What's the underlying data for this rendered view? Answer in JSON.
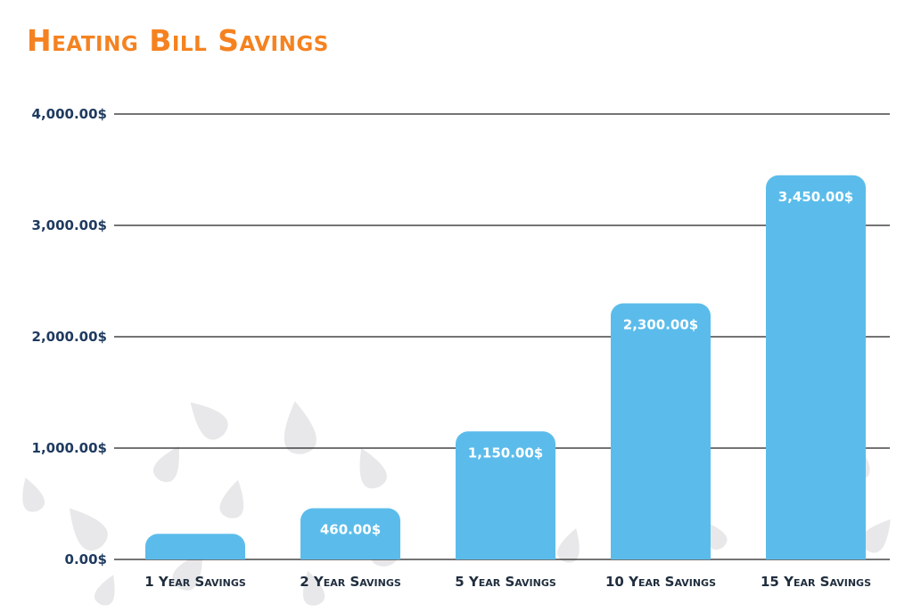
{
  "chart_data": {
    "type": "bar",
    "title": "Heating Bill Savings",
    "categories": [
      "1 Year Savings",
      "2 Year Savings",
      "5 Year Savings",
      "10 Year Savings",
      "15 Year Savings"
    ],
    "values": [
      230,
      460,
      1150,
      2300,
      3450
    ],
    "data_labels": [
      "",
      "460.00$",
      "1,150.00$",
      "2,300.00$",
      "3,450.00$"
    ],
    "y_ticks": [
      0,
      1000,
      2000,
      3000,
      4000
    ],
    "y_tick_labels": [
      "0.00$",
      "1,000.00$",
      "2,000.00$",
      "3,000.00$",
      "4,000.00$"
    ],
    "ylim": [
      0,
      4000
    ],
    "grid": true,
    "legend": "none",
    "colors": {
      "title": "#f58220",
      "bar": "#5bbceb",
      "bar_label": "#ffffff",
      "axis_text": "#1f3a5f",
      "category_text": "#1f2d3d",
      "gridline": "#222222",
      "decor": "#e8e8ea"
    }
  }
}
